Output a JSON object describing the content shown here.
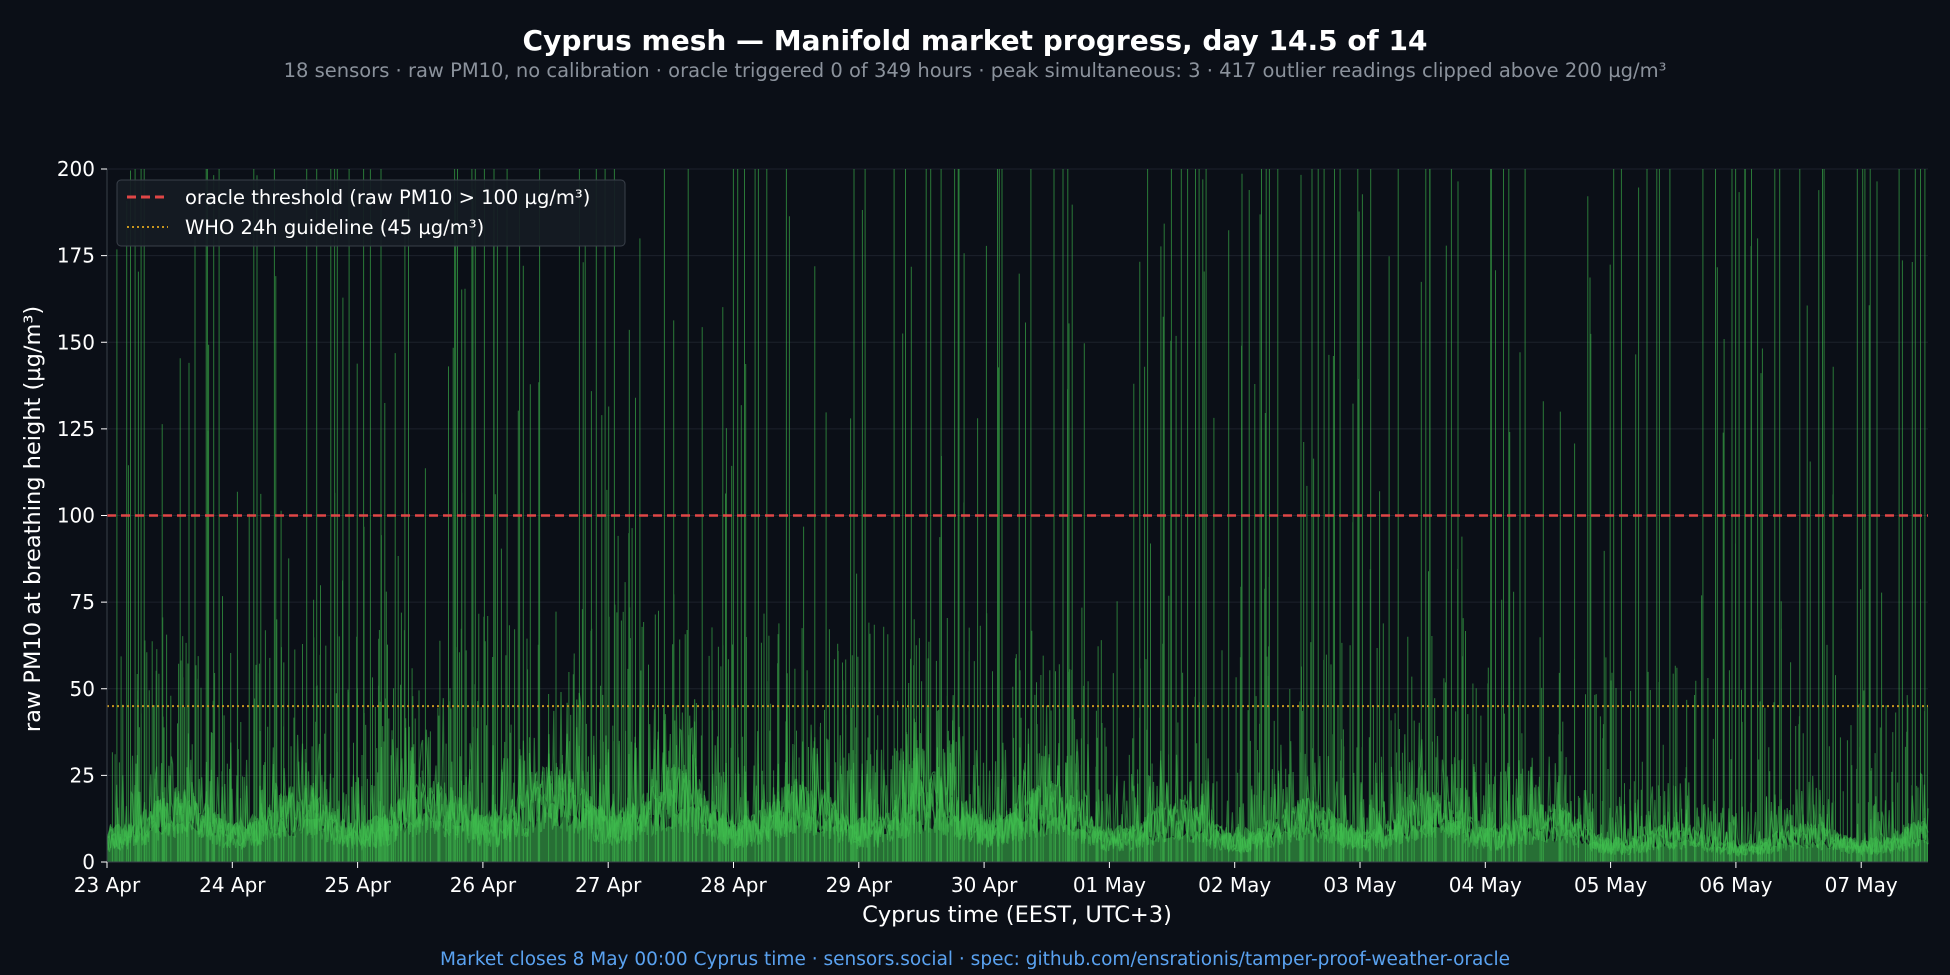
{
  "chart_data": {
    "type": "line",
    "title": "Cyprus mesh — Manifold market progress, day 14.5 of 14",
    "subtitle": "18 sensors · raw PM10, no calibration · oracle triggered 0 of 349 hours · peak simultaneous: 3 · 417 outlier readings clipped above 200 µg/m³",
    "footer": "Market closes 8 May 00:00 Cyprus time · sensors.social · spec: github.com/ensrationis/tamper-proof-weather-oracle",
    "xlabel": "Cyprus time (EEST, UTC+3)",
    "ylabel": "raw PM10 at breathing height (µg/m³)",
    "x_range": [
      "23 Apr 00:00",
      "07 May 13:00"
    ],
    "ylim": [
      0,
      200
    ],
    "x_ticks": [
      "23 Apr",
      "24 Apr",
      "25 Apr",
      "26 Apr",
      "27 Apr",
      "28 Apr",
      "29 Apr",
      "30 Apr",
      "01 May",
      "02 May",
      "03 May",
      "04 May",
      "05 May",
      "06 May",
      "07 May"
    ],
    "y_ticks": [
      0,
      25,
      50,
      75,
      100,
      125,
      150,
      175,
      200
    ],
    "grid": true,
    "legend_position": "top-left",
    "reference_lines": [
      {
        "label": "oracle threshold (raw PM10 > 100 µg/m³)",
        "value": 100,
        "color": "#e04646",
        "style": "dashed"
      },
      {
        "label": "WHO 24h guideline (45 µg/m³)",
        "value": 45,
        "color": "#c8961e",
        "style": "dotted"
      }
    ],
    "series_color": "#3fbf4f",
    "daily_typical_levels": [
      {
        "day": "23 Apr",
        "median": 9,
        "p90": 20
      },
      {
        "day": "24 Apr",
        "median": 11,
        "p90": 23
      },
      {
        "day": "25 Apr",
        "median": 10,
        "p90": 21
      },
      {
        "day": "26 Apr",
        "median": 13,
        "p90": 28
      },
      {
        "day": "27 Apr",
        "median": 14,
        "p90": 30
      },
      {
        "day": "28 Apr",
        "median": 12,
        "p90": 25
      },
      {
        "day": "29 Apr",
        "median": 11,
        "p90": 24
      },
      {
        "day": "30 Apr",
        "median": 13,
        "p90": 27
      },
      {
        "day": "01 May",
        "median": 9,
        "p90": 20
      },
      {
        "day": "02 May",
        "median": 8,
        "p90": 18
      },
      {
        "day": "03 May",
        "median": 9,
        "p90": 20
      },
      {
        "day": "04 May",
        "median": 10,
        "p90": 22
      },
      {
        "day": "05 May",
        "median": 6,
        "p90": 14
      },
      {
        "day": "06 May",
        "median": 5,
        "p90": 12
      },
      {
        "day": "07 May",
        "median": 6,
        "p90": 15
      }
    ]
  }
}
